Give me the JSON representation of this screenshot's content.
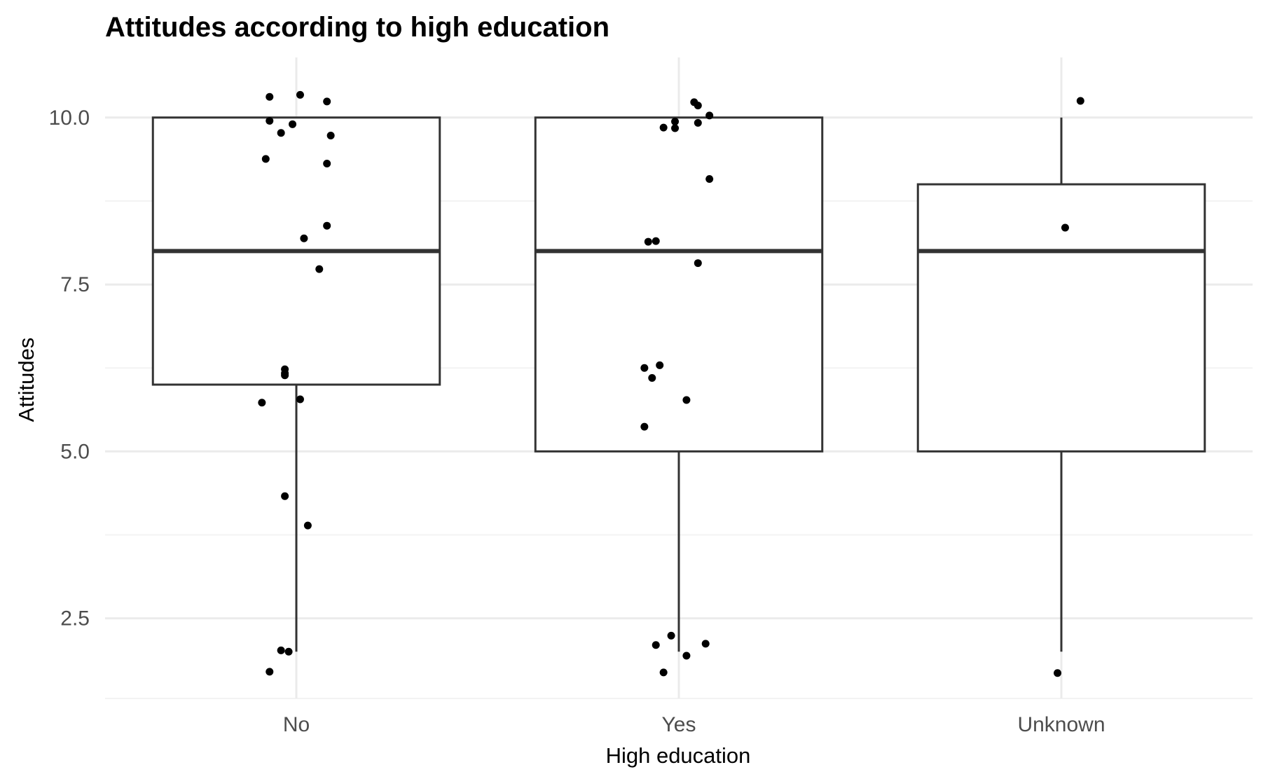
{
  "chart_data": {
    "type": "boxplot",
    "title": "Attitudes according to high education",
    "xlabel": "High education",
    "ylabel": "Attitudes",
    "categories": [
      "No",
      "Yes",
      "Unknown"
    ],
    "ylim": [
      1.3,
      10.9
    ],
    "yticks": [
      2.5,
      5.0,
      7.5,
      10.0
    ],
    "ytick_labels": [
      "2.5",
      "5.0",
      "7.5",
      "10.0"
    ],
    "yminor": [
      3.75,
      6.25,
      8.75
    ],
    "grid": true,
    "legend": "none",
    "boxes": [
      {
        "category": "No",
        "q1": 6,
        "median": 8,
        "q3": 10,
        "whisker_low": 2,
        "whisker_high": 10
      },
      {
        "category": "Yes",
        "q1": 5,
        "median": 8,
        "q3": 10,
        "whisker_low": 2,
        "whisker_high": 10
      },
      {
        "category": "Unknown",
        "q1": 5,
        "median": 8,
        "q3": 9,
        "whisker_low": 2,
        "whisker_high": 10
      }
    ],
    "points": [
      {
        "category": "No",
        "jitter": -0.07,
        "value": 10.31
      },
      {
        "category": "No",
        "jitter": 0.01,
        "value": 10.34
      },
      {
        "category": "No",
        "jitter": 0.08,
        "value": 10.24
      },
      {
        "category": "No",
        "jitter": -0.07,
        "value": 9.95
      },
      {
        "category": "No",
        "jitter": -0.01,
        "value": 9.9
      },
      {
        "category": "No",
        "jitter": -0.04,
        "value": 9.77
      },
      {
        "category": "No",
        "jitter": 0.09,
        "value": 9.73
      },
      {
        "category": "No",
        "jitter": -0.08,
        "value": 9.38
      },
      {
        "category": "No",
        "jitter": 0.08,
        "value": 9.31
      },
      {
        "category": "No",
        "jitter": 0.08,
        "value": 8.38
      },
      {
        "category": "No",
        "jitter": 0.02,
        "value": 8.19
      },
      {
        "category": "No",
        "jitter": 0.06,
        "value": 7.73
      },
      {
        "category": "No",
        "jitter": -0.03,
        "value": 6.23
      },
      {
        "category": "No",
        "jitter": -0.03,
        "value": 6.17
      },
      {
        "category": "No",
        "jitter": -0.03,
        "value": 6.14
      },
      {
        "category": "No",
        "jitter": -0.09,
        "value": 5.73
      },
      {
        "category": "No",
        "jitter": 0.01,
        "value": 5.78
      },
      {
        "category": "No",
        "jitter": -0.03,
        "value": 4.33
      },
      {
        "category": "No",
        "jitter": 0.03,
        "value": 3.89
      },
      {
        "category": "No",
        "jitter": -0.04,
        "value": 2.02
      },
      {
        "category": "No",
        "jitter": -0.02,
        "value": 2.0
      },
      {
        "category": "No",
        "jitter": -0.07,
        "value": 1.7
      },
      {
        "category": "Yes",
        "jitter": 0.04,
        "value": 10.23
      },
      {
        "category": "Yes",
        "jitter": 0.05,
        "value": 10.18
      },
      {
        "category": "Yes",
        "jitter": 0.08,
        "value": 10.03
      },
      {
        "category": "Yes",
        "jitter": -0.01,
        "value": 9.94
      },
      {
        "category": "Yes",
        "jitter": 0.05,
        "value": 9.92
      },
      {
        "category": "Yes",
        "jitter": -0.04,
        "value": 9.85
      },
      {
        "category": "Yes",
        "jitter": -0.01,
        "value": 9.84
      },
      {
        "category": "Yes",
        "jitter": 0.08,
        "value": 9.08
      },
      {
        "category": "Yes",
        "jitter": -0.08,
        "value": 8.14
      },
      {
        "category": "Yes",
        "jitter": -0.06,
        "value": 8.15
      },
      {
        "category": "Yes",
        "jitter": 0.05,
        "value": 7.82
      },
      {
        "category": "Yes",
        "jitter": -0.09,
        "value": 6.25
      },
      {
        "category": "Yes",
        "jitter": -0.05,
        "value": 6.29
      },
      {
        "category": "Yes",
        "jitter": -0.07,
        "value": 6.1
      },
      {
        "category": "Yes",
        "jitter": 0.02,
        "value": 5.77
      },
      {
        "category": "Yes",
        "jitter": -0.09,
        "value": 5.37
      },
      {
        "category": "Yes",
        "jitter": -0.02,
        "value": 2.24
      },
      {
        "category": "Yes",
        "jitter": 0.07,
        "value": 2.12
      },
      {
        "category": "Yes",
        "jitter": -0.06,
        "value": 2.1
      },
      {
        "category": "Yes",
        "jitter": 0.02,
        "value": 1.94
      },
      {
        "category": "Yes",
        "jitter": -0.04,
        "value": 1.69
      },
      {
        "category": "Unknown",
        "jitter": 0.05,
        "value": 10.25
      },
      {
        "category": "Unknown",
        "jitter": 0.01,
        "value": 8.35
      },
      {
        "category": "Unknown",
        "jitter": -0.01,
        "value": 1.68
      }
    ]
  },
  "colors": {
    "background": "#ffffff",
    "grid_major": "#ebebeb",
    "grid_minor": "#f3f3f3",
    "box_stroke": "#333333",
    "point": "#000000",
    "tick_text": "#4d4d4d",
    "title_text": "#000000"
  }
}
